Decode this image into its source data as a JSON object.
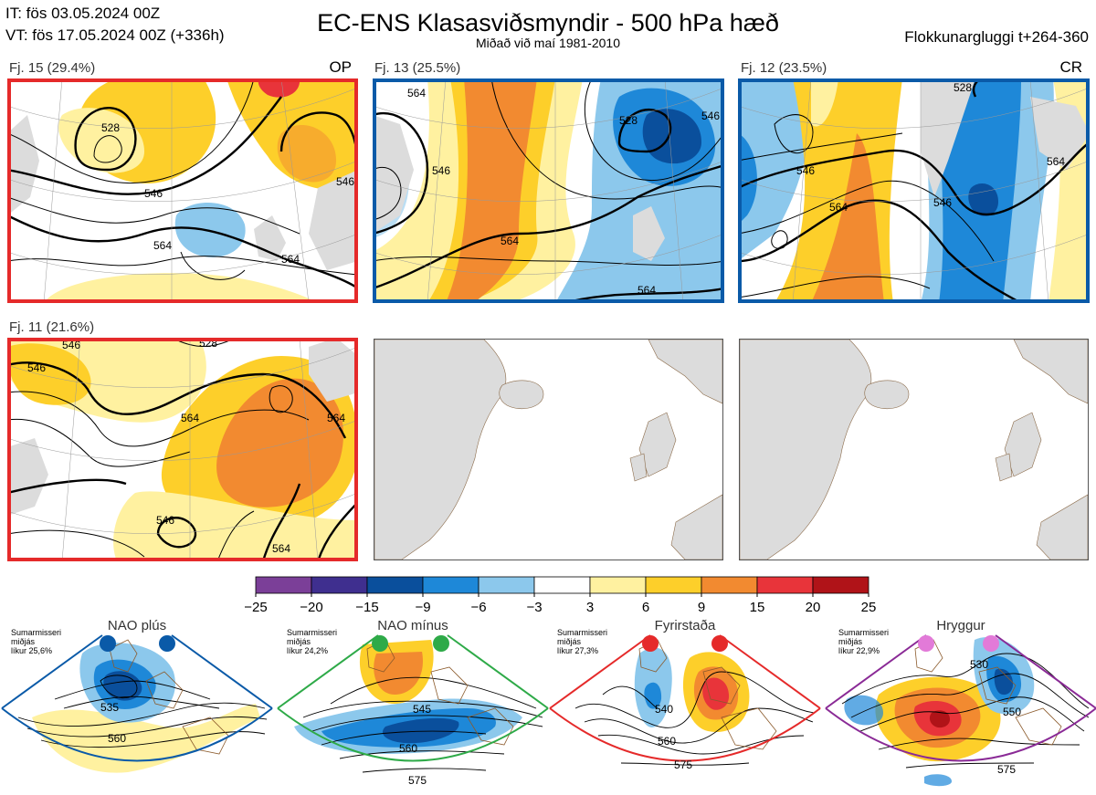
{
  "header": {
    "it_line": "IT: fös 03.05.2024 00Z",
    "vt_line": "VT: fös 17.05.2024 00Z  (+336h)",
    "title": "EC-ENS Klasasviðsmyndir - 500 hPa hæð",
    "subtitle": "Miðað við maí 1981-2010",
    "window": "Flokkunargluggi t+264-360"
  },
  "clusters": [
    {
      "label": "Fj. 15 (29.4%)",
      "tag": "OP",
      "frame_color": "#e52a2a",
      "contour_labels": [
        "528",
        "546",
        "546",
        "564",
        "564"
      ]
    },
    {
      "label": "Fj. 13 (25.5%)",
      "tag": "",
      "frame_color": "#0a5aa8",
      "contour_labels": [
        "564",
        "546",
        "528",
        "564",
        "564",
        "546"
      ]
    },
    {
      "label": "Fj. 12 (23.5%)",
      "tag": "CR",
      "frame_color": "#0a5aa8",
      "contour_labels": [
        "528",
        "546",
        "546",
        "564",
        "564"
      ]
    },
    {
      "label": "Fj. 11 (21.6%)",
      "tag": "",
      "frame_color": "#e52a2a",
      "contour_labels": [
        "546",
        "546",
        "528",
        "564",
        "546",
        "564",
        "564"
      ]
    }
  ],
  "colorbar": {
    "ticks": [
      "−25",
      "−20",
      "−15",
      "−9",
      "−6",
      "−3",
      "3",
      "6",
      "9",
      "15",
      "20",
      "25"
    ],
    "colors": [
      "#7b3f98",
      "#3f2f8f",
      "#0a4f9c",
      "#1e88d8",
      "#8cc8ec",
      "#ffffff",
      "#fff1a0",
      "#fdcf2a",
      "#f28a30",
      "#e8343a",
      "#b01318"
    ]
  },
  "regimes": [
    {
      "name": "NAO plús",
      "info": [
        "Sumarmisseri",
        "miðjás",
        "líkur 25,6%"
      ],
      "frame_color": "#0a5aa8",
      "dot_color": "#0a5aa8",
      "contour_labels": [
        "535",
        "560"
      ]
    },
    {
      "name": "NAO mínus",
      "info": [
        "Sumarmisseri",
        "miðjás",
        "líkur 24,2%"
      ],
      "frame_color": "#2eaa48",
      "dot_color": "#2eaa48",
      "contour_labels": [
        "545",
        "560",
        "575"
      ]
    },
    {
      "name": "Fyrirstaða",
      "info": [
        "Sumarmisseri",
        "miðjás",
        "líkur 27,3%"
      ],
      "frame_color": "#e52a2a",
      "dot_color": "#e52a2a",
      "contour_labels": [
        "540",
        "560",
        "575"
      ]
    },
    {
      "name": "Hryggur",
      "info": [
        "Sumarmisseri",
        "miðjás",
        "líkur 22,9%"
      ],
      "frame_color": "#8a2a96",
      "dot_color": "#e27ad8",
      "contour_labels": [
        "530",
        "550",
        "575"
      ]
    }
  ]
}
